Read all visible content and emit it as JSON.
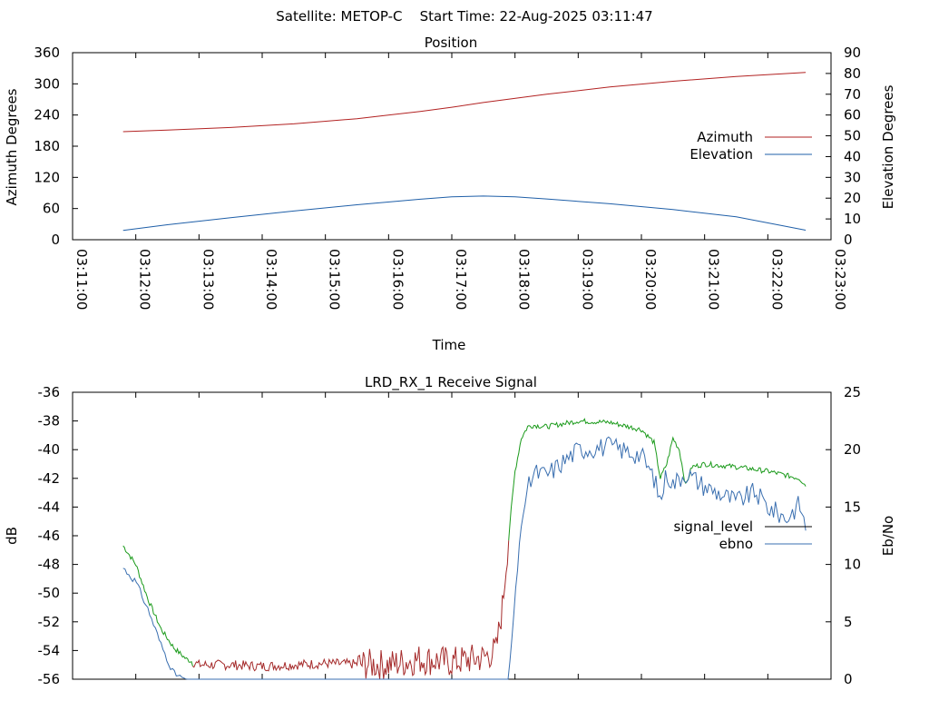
{
  "header": {
    "title": "Satellite: METOP-C    Start Time: 22-Aug-2025 03:11:47"
  },
  "colors": {
    "azimuth": "#b22222",
    "elevation": "#1f5fa8",
    "signal_level": "#1a9a1a",
    "ebno": "#3a6fb0",
    "signal_low": "#a52a2a"
  },
  "chart_data": [
    {
      "type": "line",
      "title": "Position",
      "xlabel": "Time",
      "ylabel": "Azimuth Degrees",
      "y2label": "Elevation Degrees",
      "xlim": [
        "03:11:00",
        "03:23:00"
      ],
      "x_ticks": [
        "03:11:00",
        "03:12:00",
        "03:13:00",
        "03:14:00",
        "03:15:00",
        "03:16:00",
        "03:17:00",
        "03:18:00",
        "03:19:00",
        "03:20:00",
        "03:21:00",
        "03:22:00",
        "03:23:00"
      ],
      "ylim": [
        0,
        360
      ],
      "y_ticks": [
        "0",
        "60",
        "120",
        "180",
        "240",
        "300",
        "360"
      ],
      "y2lim": [
        0,
        90
      ],
      "y2_ticks": [
        "0",
        "10",
        "20",
        "30",
        "40",
        "50",
        "60",
        "70",
        "80",
        "90"
      ],
      "legend_position": "right",
      "x_unit": "minutes after 03:11:00",
      "series": [
        {
          "name": "Azimuth",
          "axis": "left",
          "x": [
            0.8,
            1.5,
            2.5,
            3.5,
            4.5,
            5.5,
            6.0,
            6.5,
            7.5,
            8.5,
            9.5,
            10.5,
            11.6
          ],
          "values": [
            208,
            211,
            216,
            223,
            233,
            247,
            255,
            264,
            280,
            294,
            305,
            314,
            322
          ]
        },
        {
          "name": "Elevation",
          "axis": "right",
          "x": [
            0.8,
            1.5,
            2.5,
            3.5,
            4.5,
            5.5,
            6.0,
            6.5,
            7.0,
            7.5,
            8.5,
            9.5,
            10.5,
            11.6
          ],
          "values": [
            4.5,
            7.2,
            10.6,
            13.8,
            16.8,
            19.5,
            20.6,
            21.0,
            20.6,
            19.6,
            17.3,
            14.5,
            11.0,
            4.6
          ]
        }
      ]
    },
    {
      "type": "line",
      "title": "LRD_RX_1 Receive Signal",
      "ylabel": "dB",
      "y2label": "Eb/No",
      "ylim": [
        -56,
        -36
      ],
      "y_ticks": [
        "-56",
        "-54",
        "-52",
        "-50",
        "-48",
        "-46",
        "-44",
        "-42",
        "-40",
        "-38",
        "-36"
      ],
      "y2lim": [
        0,
        25
      ],
      "y2_ticks": [
        "0",
        "5",
        "10",
        "15",
        "20",
        "25"
      ],
      "legend_position": "right",
      "x_unit": "minutes after 03:11:00",
      "series": [
        {
          "name": "signal_level",
          "axis": "left",
          "x": [
            0.8,
            1.0,
            1.2,
            1.4,
            1.6,
            1.8,
            2.0,
            2.5,
            3.0,
            4.0,
            5.0,
            5.5,
            6.0,
            6.5,
            6.7,
            6.8,
            6.9,
            7.0,
            7.1,
            7.2,
            7.3,
            7.5,
            8.0,
            8.5,
            9.0,
            9.2,
            9.3,
            9.4,
            9.5,
            9.6,
            9.7,
            9.8,
            10.0,
            10.5,
            11.0,
            11.5,
            11.6
          ],
          "values": [
            -46.7,
            -48.0,
            -50.5,
            -52.5,
            -53.8,
            -54.6,
            -55.0,
            -55.0,
            -55.1,
            -54.9,
            -55.0,
            -54.6,
            -54.8,
            -54.5,
            -54.0,
            -51.0,
            -46.0,
            -41.5,
            -39.2,
            -38.4,
            -38.3,
            -38.4,
            -38.0,
            -38.1,
            -38.6,
            -39.5,
            -42.0,
            -41.0,
            -39.2,
            -40.0,
            -42.5,
            -41.2,
            -41.0,
            -41.2,
            -41.5,
            -42.0,
            -42.5
          ]
        },
        {
          "name": "ebno",
          "axis": "right",
          "x": [
            0.8,
            1.0,
            1.2,
            1.4,
            1.6,
            1.8,
            6.9,
            7.0,
            7.1,
            7.2,
            7.3,
            7.5,
            8.0,
            8.5,
            9.0,
            9.2,
            9.3,
            9.4,
            9.5,
            9.7,
            10.0,
            10.5,
            10.8,
            11.0,
            11.3,
            11.5,
            11.6
          ],
          "values": [
            9.7,
            8.5,
            6.0,
            3.0,
            0.5,
            0.0,
            0.0,
            7.0,
            13.5,
            16.5,
            18.0,
            17.8,
            20.0,
            20.3,
            19.5,
            17.5,
            15.5,
            18.0,
            17.0,
            18.0,
            16.8,
            15.5,
            16.3,
            15.0,
            14.0,
            15.3,
            13.2
          ]
        }
      ]
    }
  ]
}
